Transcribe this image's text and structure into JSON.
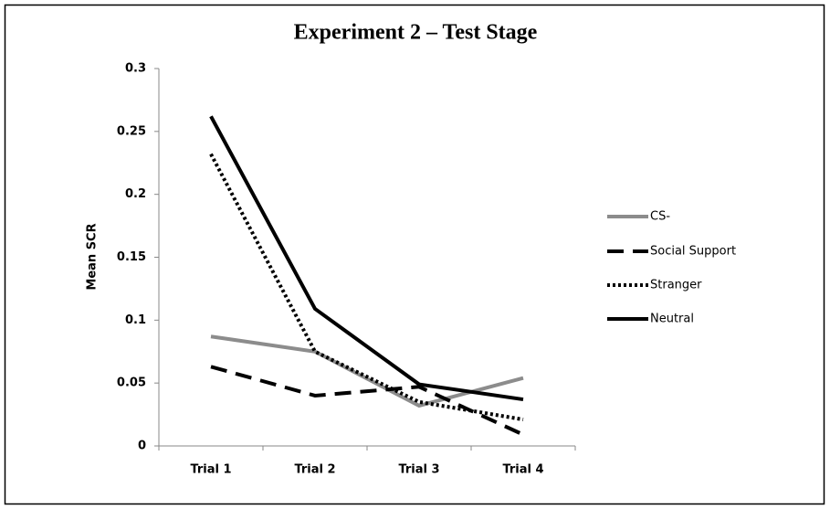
{
  "chart_data": {
    "type": "line",
    "title": "Experiment 2 – Test Stage",
    "y_label": "Mean SCR",
    "categories": [
      "Trial 1",
      "Trial 2",
      "Trial 3",
      "Trial 4"
    ],
    "series": [
      {
        "name": "CS-",
        "color": "#8c8c8c",
        "dash": "solid",
        "values": [
          0.087,
          0.075,
          0.032,
          0.054
        ]
      },
      {
        "name": "Social Support",
        "color": "#000000",
        "dash": "dashed",
        "values": [
          0.063,
          0.04,
          0.047,
          0.009
        ]
      },
      {
        "name": "Stranger",
        "color": "#000000",
        "dash": "dotted",
        "values": [
          0.232,
          0.075,
          0.035,
          0.021
        ]
      },
      {
        "name": "Neutral",
        "color": "#000000",
        "dash": "solid",
        "values": [
          0.262,
          0.109,
          0.049,
          0.037
        ]
      }
    ],
    "ylim": [
      0,
      0.3
    ],
    "yticks": [
      0,
      0.05,
      0.1,
      0.15,
      0.2,
      0.25,
      0.3
    ],
    "grid": false,
    "legend": "right"
  }
}
